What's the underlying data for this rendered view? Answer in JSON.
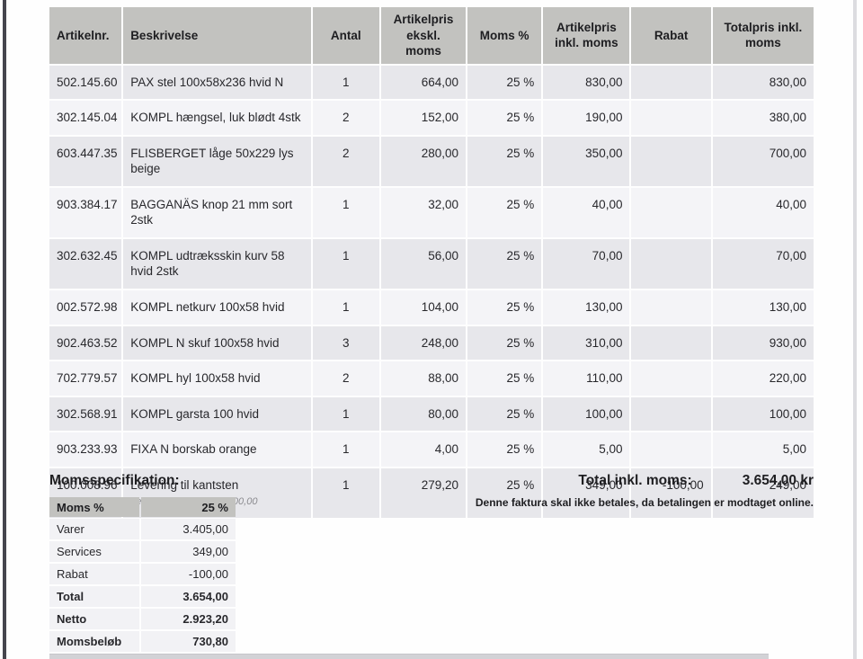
{
  "invoice_table": {
    "columns": [
      {
        "key": "artikelnr",
        "label": "Artikelnr."
      },
      {
        "key": "beskrivelse",
        "label": "Beskrivelse"
      },
      {
        "key": "antal",
        "label": "Antal"
      },
      {
        "key": "pris_ekskl",
        "label": "Artikelpris\nekskl. moms"
      },
      {
        "key": "moms",
        "label": "Moms %"
      },
      {
        "key": "pris_inkl",
        "label": "Artikelpris\ninkl. moms"
      },
      {
        "key": "rabat",
        "label": "Rabat"
      },
      {
        "key": "total",
        "label": "Totalpris inkl.\nmoms"
      }
    ],
    "rows": [
      {
        "artikelnr": "502.145.60",
        "beskrivelse": "PAX stel 100x58x236 hvid N",
        "antal": "1",
        "pris_ekskl": "664,00",
        "moms": "25 %",
        "pris_inkl": "830,00",
        "rabat": "",
        "total": "830,00"
      },
      {
        "artikelnr": "302.145.04",
        "beskrivelse": "KOMPL hængsel, luk blødt 4stk",
        "antal": "2",
        "pris_ekskl": "152,00",
        "moms": "25 %",
        "pris_inkl": "190,00",
        "rabat": "",
        "total": "380,00"
      },
      {
        "artikelnr": "603.447.35",
        "beskrivelse": "FLISBERGET låge 50x229 lys beige",
        "antal": "2",
        "pris_ekskl": "280,00",
        "moms": "25 %",
        "pris_inkl": "350,00",
        "rabat": "",
        "total": "700,00"
      },
      {
        "artikelnr": "903.384.17",
        "beskrivelse": "BAGGANÄS knop 21 mm sort 2stk",
        "antal": "1",
        "pris_ekskl": "32,00",
        "moms": "25 %",
        "pris_inkl": "40,00",
        "rabat": "",
        "total": "40,00"
      },
      {
        "artikelnr": "302.632.45",
        "beskrivelse": "KOMPL udtræksskin kurv 58 hvid 2stk",
        "antal": "1",
        "pris_ekskl": "56,00",
        "moms": "25 %",
        "pris_inkl": "70,00",
        "rabat": "",
        "total": "70,00"
      },
      {
        "artikelnr": "002.572.98",
        "beskrivelse": "KOMPL netkurv 100x58 hvid",
        "antal": "1",
        "pris_ekskl": "104,00",
        "moms": "25 %",
        "pris_inkl": "130,00",
        "rabat": "",
        "total": "130,00"
      },
      {
        "artikelnr": "902.463.52",
        "beskrivelse": "KOMPL N skuf 100x58 hvid",
        "antal": "3",
        "pris_ekskl": "248,00",
        "moms": "25 %",
        "pris_inkl": "310,00",
        "rabat": "",
        "total": "930,00"
      },
      {
        "artikelnr": "702.779.57",
        "beskrivelse": "KOMPL hyl 100x58 hvid",
        "antal": "2",
        "pris_ekskl": "88,00",
        "moms": "25 %",
        "pris_inkl": "110,00",
        "rabat": "",
        "total": "220,00"
      },
      {
        "artikelnr": "302.568.91",
        "beskrivelse": "KOMPL garsta 100 hvid",
        "antal": "1",
        "pris_ekskl": "80,00",
        "moms": "25 %",
        "pris_inkl": "100,00",
        "rabat": "",
        "total": "100,00"
      },
      {
        "artikelnr": "903.233.93",
        "beskrivelse": "FIXA N borskab orange",
        "antal": "1",
        "pris_ekskl": "4,00",
        "moms": "25 %",
        "pris_inkl": "5,00",
        "rabat": "",
        "total": "5,00"
      },
      {
        "artikelnr": "100.008.96",
        "beskrivelse": "Levering til kantsten",
        "antal": "1",
        "pris_ekskl": "279,20",
        "moms": "25 %",
        "pris_inkl": "349,00",
        "rabat": "-100,00",
        "total": "249,00",
        "note": "Levering til kantsten: -100,00"
      }
    ]
  },
  "momsspecifikation": {
    "title": "Momsspecifikation:",
    "header": {
      "label": "Moms %",
      "value": "25 %"
    },
    "rows": [
      {
        "label": "Varer",
        "value": "3.405,00",
        "bold": false
      },
      {
        "label": "Services",
        "value": "349,00",
        "bold": false
      },
      {
        "label": "Rabat",
        "value": "-100,00",
        "bold": false
      },
      {
        "label": "Total",
        "value": "3.654,00",
        "bold": true
      },
      {
        "label": "Netto",
        "value": "2.923,20",
        "bold": true
      },
      {
        "label": "Momsbeløb",
        "value": "730,80",
        "bold": true
      }
    ]
  },
  "summary": {
    "total_label": "Total inkl. moms:",
    "total_value": "3.654,00 kr",
    "note": "Denne faktura skal ikke betales, da betalingen er modtaget online."
  },
  "colors": {
    "table_header_bg": "#c2c2bf",
    "row_odd_bg": "#e7e7eb",
    "row_even_bg": "#f4f4f7",
    "moms_row_bg": "#f2f2f5",
    "left_strip": "#45454d",
    "text": "#1e1e21",
    "note_text": "#8c8c90"
  }
}
